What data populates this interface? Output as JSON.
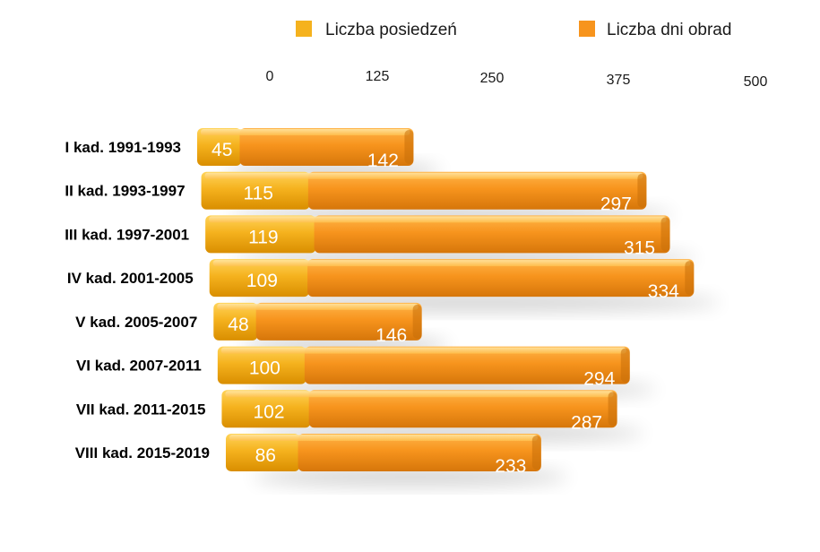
{
  "chart_data": {
    "type": "bar",
    "orientation": "horizontal",
    "stacked": true,
    "categories": [
      "I kad. 1991-1993",
      "II kad. 1993-1997",
      "III kad. 1997-2001",
      "IV kad. 2001-2005",
      "V kad. 2005-2007",
      "VI kad. 2007-2011",
      "VII kad. 2011-2015",
      "VIII kad. 2015-2019"
    ],
    "series": [
      {
        "name": "Liczba posiedzeń",
        "values": [
          45,
          115,
          119,
          109,
          48,
          100,
          102,
          86
        ],
        "color": "#F5B21E"
      },
      {
        "name": "Liczba dni obrad",
        "values": [
          142,
          297,
          315,
          334,
          146,
          294,
          287,
          233
        ],
        "color": "#F7941D"
      }
    ],
    "xlim": [
      0,
      500
    ],
    "xticks": [
      "0",
      "125",
      "250",
      "375",
      "500"
    ],
    "legend_position": "top",
    "grid": false
  }
}
